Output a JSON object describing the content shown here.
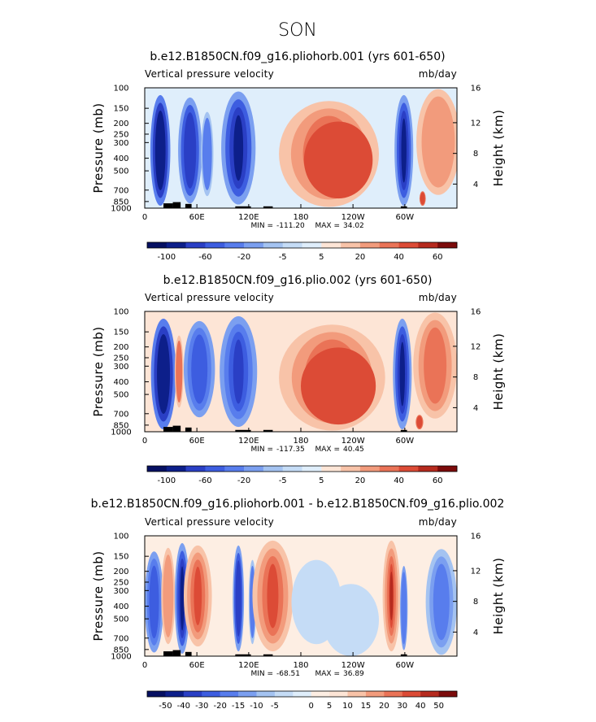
{
  "figure": {
    "title": "SON"
  },
  "colors": {
    "ocean_blue_light": "#dfeefb",
    "positive_scale": [
      "#fde5d6",
      "#f8c3a8",
      "#f29b7c",
      "#ea7357",
      "#dc4b36",
      "#b62a1e",
      "#7c0b0b"
    ],
    "negative_scale": [
      "#c5dcf6",
      "#a4c3f1",
      "#7b9ff0",
      "#587ded",
      "#3d5de0",
      "#2a3fc5",
      "#0d1f8a",
      "#061062"
    ],
    "terrain": "#000000"
  },
  "chart_data": [
    {
      "type": "heatmap",
      "title": "b.e12.B1850CN.f09_g16.pliohorb.001 (yrs 601-650)",
      "left_label": "Vertical pressure velocity",
      "units": "mb/day",
      "ylabel": "Pressure (mb)",
      "ylabel_right": "Height (km)",
      "pressure_ticks": [
        "100",
        "150",
        "200",
        "250",
        "300",
        "400",
        "500",
        "700",
        "850",
        "1000"
      ],
      "height_ticks": [
        "16",
        "12",
        "8",
        "4"
      ],
      "x_ticks": [
        "0",
        "60E",
        "120E",
        "180",
        "120W",
        "60W"
      ],
      "stats": {
        "min_label": "MIN =",
        "min": "-111.20",
        "max_label": "MAX =",
        "max": "34.02"
      },
      "colorbar_labels": [
        "-100",
        "-60",
        "-20",
        "-5",
        "5",
        "20",
        "40",
        "60"
      ],
      "colorbar_colors": [
        "#061062",
        "#0d1f8a",
        "#2a3fc5",
        "#3d5de0",
        "#587ded",
        "#7b9ff0",
        "#a4c3f1",
        "#c5dcf6",
        "#dfeefb",
        "#fde5d6",
        "#f8c3a8",
        "#f29b7c",
        "#ea7357",
        "#dc4b36",
        "#b62a1e",
        "#7c0b0b"
      ]
    },
    {
      "type": "heatmap",
      "title": "b.e12.B1850CN.f09_g16.plio.002 (yrs 601-650)",
      "left_label": "Vertical pressure velocity",
      "units": "mb/day",
      "ylabel": "Pressure (mb)",
      "ylabel_right": "Height (km)",
      "pressure_ticks": [
        "100",
        "150",
        "200",
        "250",
        "300",
        "400",
        "500",
        "700",
        "850",
        "1000"
      ],
      "height_ticks": [
        "16",
        "12",
        "8",
        "4"
      ],
      "x_ticks": [
        "0",
        "60E",
        "120E",
        "180",
        "120W",
        "60W"
      ],
      "stats": {
        "min_label": "MIN =",
        "min": "-117.35",
        "max_label": "MAX =",
        "max": "40.45"
      },
      "colorbar_labels": [
        "-100",
        "-60",
        "-20",
        "-5",
        "5",
        "20",
        "40",
        "60"
      ],
      "colorbar_colors": [
        "#061062",
        "#0d1f8a",
        "#2a3fc5",
        "#3d5de0",
        "#587ded",
        "#7b9ff0",
        "#a4c3f1",
        "#c5dcf6",
        "#dfeefb",
        "#fde5d6",
        "#f8c3a8",
        "#f29b7c",
        "#ea7357",
        "#dc4b36",
        "#b62a1e",
        "#7c0b0b"
      ]
    },
    {
      "type": "heatmap",
      "title": "b.e12.B1850CN.f09_g16.pliohorb.001 - b.e12.B1850CN.f09_g16.plio.002",
      "left_label": "Vertical pressure velocity",
      "units": "mb/day",
      "ylabel": "Pressure (mb)",
      "ylabel_right": "Height (km)",
      "pressure_ticks": [
        "100",
        "150",
        "200",
        "250",
        "300",
        "400",
        "500",
        "700",
        "850",
        "1000"
      ],
      "height_ticks": [
        "16",
        "12",
        "8",
        "4"
      ],
      "x_ticks": [
        "0",
        "60E",
        "120E",
        "180",
        "120W",
        "60W"
      ],
      "stats": {
        "min_label": "MIN =",
        "min": "-68.51",
        "max_label": "MAX =",
        "max": "36.89"
      },
      "colorbar_labels": [
        "-50",
        "-40",
        "-30",
        "-20",
        "-15",
        "-10",
        "-5",
        "0",
        "5",
        "10",
        "15",
        "20",
        "30",
        "40",
        "50"
      ],
      "colorbar_colors": [
        "#061062",
        "#0d1f8a",
        "#2a3fc5",
        "#3d5de0",
        "#587ded",
        "#7b9ff0",
        "#a4c3f1",
        "#c5dcf6",
        "#dfeefb",
        "#fdeee3",
        "#fde5d6",
        "#f8c3a8",
        "#f29b7c",
        "#ea7357",
        "#dc4b36",
        "#b62a1e",
        "#7c0b0b"
      ]
    }
  ]
}
